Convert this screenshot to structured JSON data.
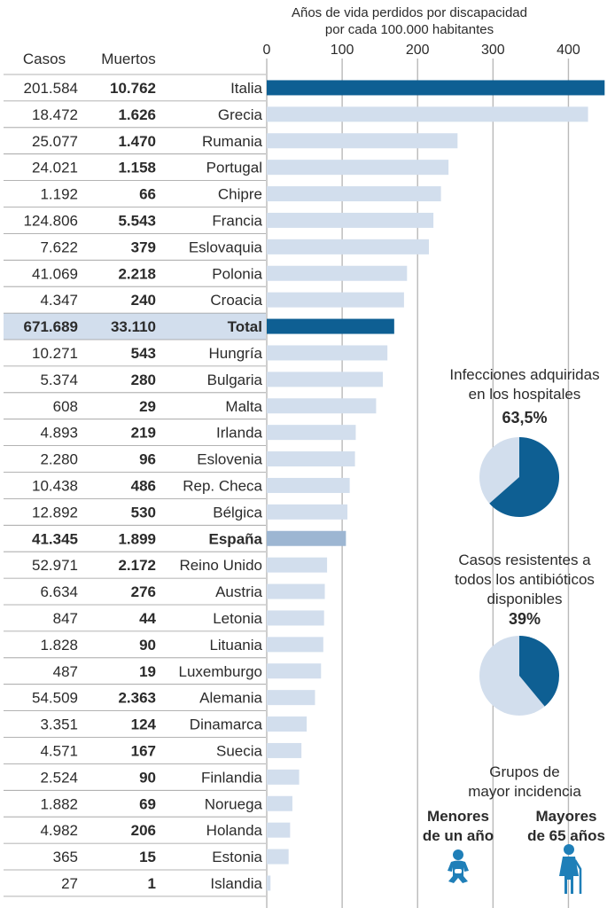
{
  "chart_data": {
    "type": "bar",
    "title": "Años de vida perdidos por discapacidad por cada 100.000 habitantes",
    "title_lines": [
      "Años de vida perdidos por discapacidad",
      "por cada 100.000 habitantes"
    ],
    "xlim": [
      0,
      450
    ],
    "ticks": [
      0,
      100,
      200,
      300,
      400
    ],
    "tick_labels": [
      "0",
      "100",
      "200",
      "300",
      "400"
    ],
    "columns": [
      "Casos",
      "Muertos"
    ],
    "rows": [
      {
        "country": "Italia",
        "casos": "201.584",
        "muertos": "10.762",
        "value": 448,
        "style": "dark"
      },
      {
        "country": "Grecia",
        "casos": "18.472",
        "muertos": "1.626",
        "value": 426,
        "style": "light"
      },
      {
        "country": "Rumania",
        "casos": "25.077",
        "muertos": "1.470",
        "value": 253,
        "style": "light"
      },
      {
        "country": "Portugal",
        "casos": "24.021",
        "muertos": "1.158",
        "value": 241,
        "style": "light"
      },
      {
        "country": "Chipre",
        "casos": "1.192",
        "muertos": "66",
        "value": 231,
        "style": "light"
      },
      {
        "country": "Francia",
        "casos": "124.806",
        "muertos": "5.543",
        "value": 221,
        "style": "light"
      },
      {
        "country": "Eslovaquia",
        "casos": "7.622",
        "muertos": "379",
        "value": 215,
        "style": "light"
      },
      {
        "country": "Polonia",
        "casos": "41.069",
        "muertos": "2.218",
        "value": 186,
        "style": "light"
      },
      {
        "country": "Croacia",
        "casos": "4.347",
        "muertos": "240",
        "value": 182,
        "style": "light"
      },
      {
        "country": "Total",
        "casos": "671.689",
        "muertos": "33.110",
        "value": 169,
        "style": "dark",
        "highlight": true
      },
      {
        "country": "Hungría",
        "casos": "10.271",
        "muertos": "543",
        "value": 160,
        "style": "light"
      },
      {
        "country": "Bulgaria",
        "casos": "5.374",
        "muertos": "280",
        "value": 154,
        "style": "light"
      },
      {
        "country": "Malta",
        "casos": "608",
        "muertos": "29",
        "value": 145,
        "style": "light"
      },
      {
        "country": "Irlanda",
        "casos": "4.893",
        "muertos": "219",
        "value": 118,
        "style": "light"
      },
      {
        "country": "Eslovenia",
        "casos": "2.280",
        "muertos": "96",
        "value": 117,
        "style": "light"
      },
      {
        "country": "Rep. Checa",
        "casos": "10.438",
        "muertos": "486",
        "value": 110,
        "style": "light"
      },
      {
        "country": "Bélgica",
        "casos": "12.892",
        "muertos": "530",
        "value": 107,
        "style": "light"
      },
      {
        "country": "España",
        "casos": "41.345",
        "muertos": "1.899",
        "value": 105,
        "style": "mid",
        "bold_row": true
      },
      {
        "country": "Reino Unido",
        "casos": "52.971",
        "muertos": "2.172",
        "value": 80,
        "style": "light"
      },
      {
        "country": "Austria",
        "casos": "6.634",
        "muertos": "276",
        "value": 77,
        "style": "light"
      },
      {
        "country": "Letonia",
        "casos": "847",
        "muertos": "44",
        "value": 76,
        "style": "light"
      },
      {
        "country": "Lituania",
        "casos": "1.828",
        "muertos": "90",
        "value": 75,
        "style": "light"
      },
      {
        "country": "Luxemburgo",
        "casos": "487",
        "muertos": "19",
        "value": 72,
        "style": "light"
      },
      {
        "country": "Alemania",
        "casos": "54.509",
        "muertos": "2.363",
        "value": 64,
        "style": "light"
      },
      {
        "country": "Dinamarca",
        "casos": "3.351",
        "muertos": "124",
        "value": 53,
        "style": "light"
      },
      {
        "country": "Suecia",
        "casos": "4.571",
        "muertos": "167",
        "value": 46,
        "style": "light"
      },
      {
        "country": "Finlandia",
        "casos": "2.524",
        "muertos": "90",
        "value": 43,
        "style": "light"
      },
      {
        "country": "Noruega",
        "casos": "1.882",
        "muertos": "69",
        "value": 34,
        "style": "light"
      },
      {
        "country": "Holanda",
        "casos": "4.982",
        "muertos": "206",
        "value": 31,
        "style": "light"
      },
      {
        "country": "Estonia",
        "casos": "365",
        "muertos": "15",
        "value": 29,
        "style": "light"
      },
      {
        "country": "Islandia",
        "casos": "27",
        "muertos": "1",
        "value": 5,
        "style": "light"
      }
    ],
    "colors": {
      "dark": "#0e5f93",
      "mid": "#9db6d2",
      "light": "#d2deed",
      "total_row_bg": "#d2deed"
    }
  },
  "side": {
    "pie1": {
      "label_lines": [
        "Infecciones adquiridas",
        "en los hospitales"
      ],
      "value_label": "63,5%",
      "value": 63.5
    },
    "pie2": {
      "label_lines": [
        "Casos resistentes a",
        "todos los antibióticos",
        "disponibles"
      ],
      "value_label": "39%",
      "value": 39
    },
    "groups": {
      "title_lines": [
        "Grupos de",
        "mayor incidencia"
      ],
      "left_lines": [
        "Menores",
        "de un año"
      ],
      "right_lines": [
        "Mayores",
        "de 65 años"
      ],
      "left_icon": "baby-icon",
      "right_icon": "elderly-woman-icon"
    },
    "pie_colors": {
      "filled": "#0e5f93",
      "rest": "#d2deed"
    }
  }
}
